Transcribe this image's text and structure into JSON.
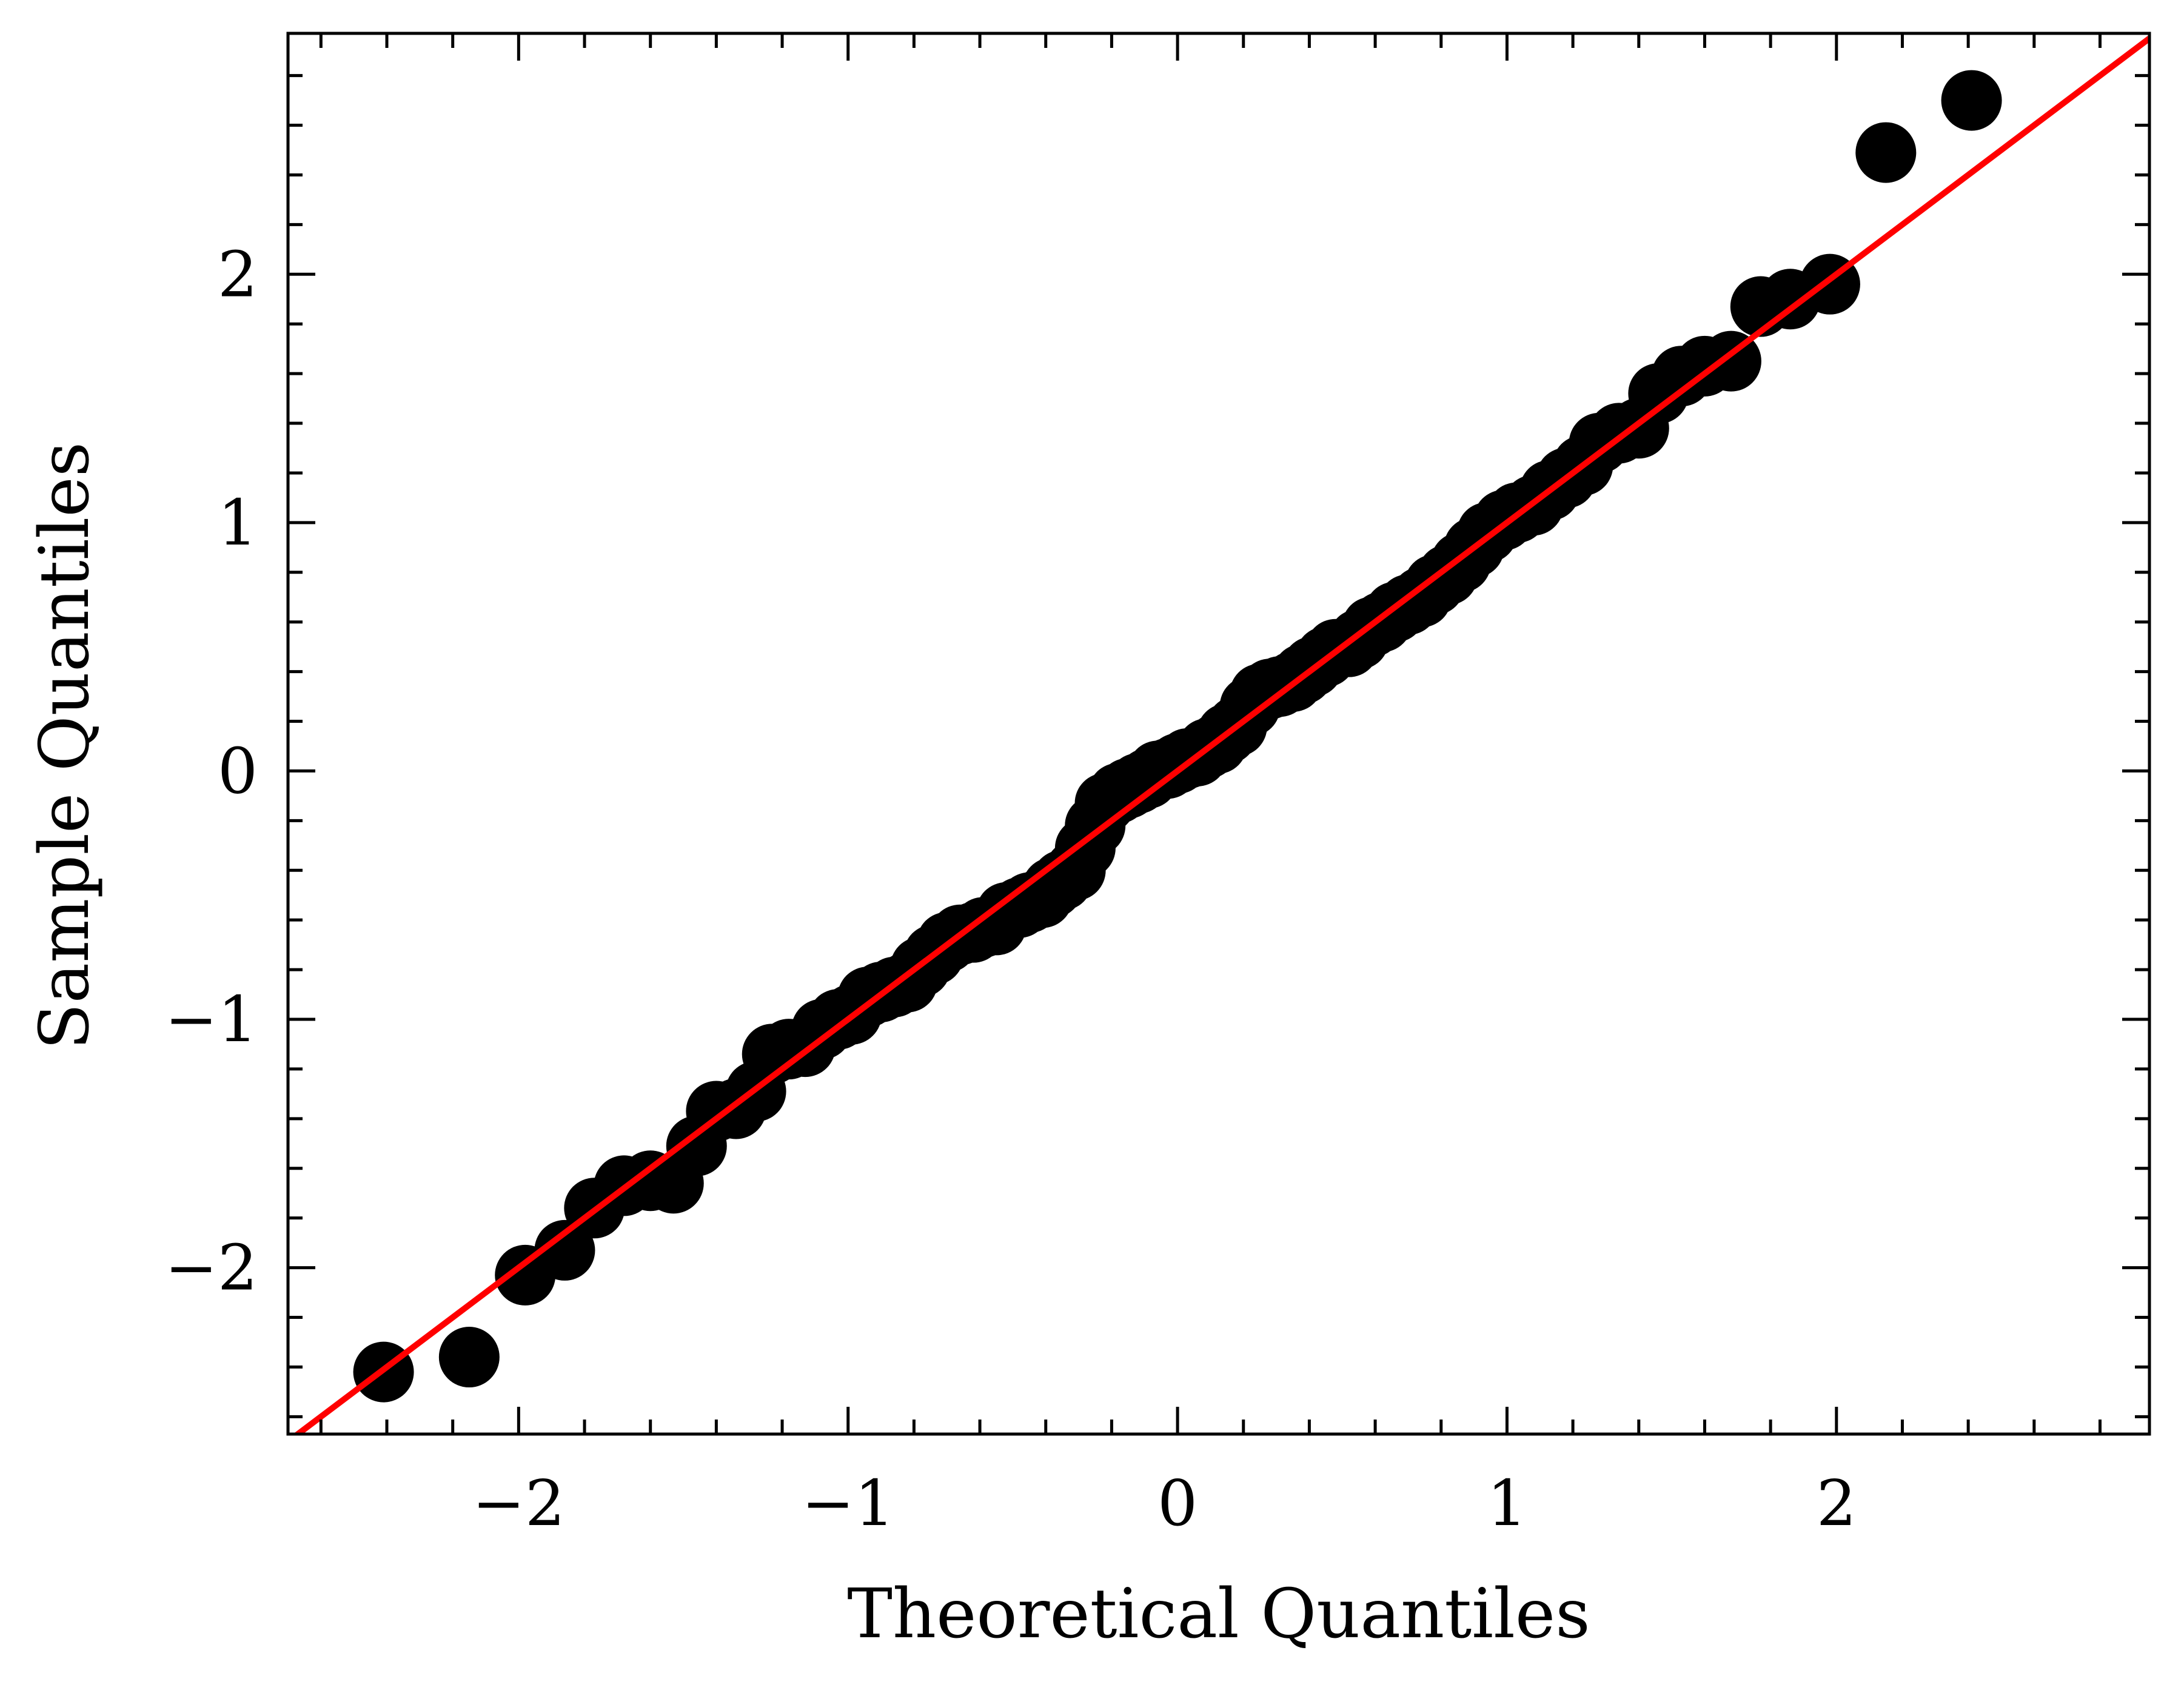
{
  "chart_data": {
    "type": "scatter",
    "title": "",
    "xlabel": "Theoretical Quantiles",
    "ylabel": "Sample Quantiles",
    "xlim": [
      -2.7,
      2.95
    ],
    "ylim": [
      -2.67,
      2.97
    ],
    "xticks": [
      -2,
      -1,
      0,
      1,
      2
    ],
    "yticks": [
      -2,
      -1,
      0,
      1,
      2
    ],
    "xtick_labels": [
      "−2",
      "−1",
      "0",
      "1",
      "2"
    ],
    "ytick_labels": [
      "−2",
      "−1",
      "0",
      "1",
      "2"
    ],
    "grid": false,
    "point_color": "#000000",
    "line_color": "#ff0000",
    "reference_line": {
      "slope": 1.0,
      "intercept": 0.0
    },
    "points": [
      [
        -2.41,
        -2.42
      ],
      [
        -2.15,
        -2.36
      ],
      [
        -1.98,
        -2.03
      ],
      [
        -1.86,
        -1.93
      ],
      [
        -1.77,
        -1.76
      ],
      [
        -1.68,
        -1.67
      ],
      [
        -1.6,
        -1.65
      ],
      [
        -1.53,
        -1.66
      ],
      [
        -1.46,
        -1.51
      ],
      [
        -1.4,
        -1.37
      ],
      [
        -1.34,
        -1.36
      ],
      [
        -1.28,
        -1.29
      ],
      [
        -1.23,
        -1.14
      ],
      [
        -1.18,
        -1.12
      ],
      [
        -1.13,
        -1.11
      ],
      [
        -1.08,
        -1.04
      ],
      [
        -1.03,
        -1.0
      ],
      [
        -0.99,
        -0.98
      ],
      [
        -0.94,
        -0.91
      ],
      [
        -0.9,
        -0.89
      ],
      [
        -0.86,
        -0.87
      ],
      [
        -0.82,
        -0.85
      ],
      [
        -0.78,
        -0.79
      ],
      [
        -0.74,
        -0.74
      ],
      [
        -0.7,
        -0.69
      ],
      [
        -0.66,
        -0.66
      ],
      [
        -0.62,
        -0.65
      ],
      [
        -0.59,
        -0.63
      ],
      [
        -0.55,
        -0.62
      ],
      [
        -0.52,
        -0.57
      ],
      [
        -0.48,
        -0.55
      ],
      [
        -0.45,
        -0.53
      ],
      [
        -0.41,
        -0.51
      ],
      [
        -0.38,
        -0.47
      ],
      [
        -0.35,
        -0.44
      ],
      [
        -0.31,
        -0.4
      ],
      [
        -0.28,
        -0.31
      ],
      [
        -0.25,
        -0.22
      ],
      [
        -0.22,
        -0.13
      ],
      [
        -0.18,
        -0.09
      ],
      [
        -0.15,
        -0.07
      ],
      [
        -0.12,
        -0.05
      ],
      [
        -0.09,
        -0.03
      ],
      [
        -0.06,
        0.0
      ],
      [
        -0.03,
        0.01
      ],
      [
        0.0,
        0.03
      ],
      [
        0.03,
        0.05
      ],
      [
        0.06,
        0.06
      ],
      [
        0.09,
        0.09
      ],
      [
        0.12,
        0.11
      ],
      [
        0.15,
        0.15
      ],
      [
        0.18,
        0.18
      ],
      [
        0.22,
        0.26
      ],
      [
        0.25,
        0.31
      ],
      [
        0.28,
        0.33
      ],
      [
        0.31,
        0.34
      ],
      [
        0.35,
        0.36
      ],
      [
        0.38,
        0.39
      ],
      [
        0.41,
        0.42
      ],
      [
        0.45,
        0.46
      ],
      [
        0.48,
        0.49
      ],
      [
        0.52,
        0.5
      ],
      [
        0.55,
        0.53
      ],
      [
        0.59,
        0.58
      ],
      [
        0.62,
        0.6
      ],
      [
        0.66,
        0.64
      ],
      [
        0.7,
        0.67
      ],
      [
        0.74,
        0.7
      ],
      [
        0.78,
        0.75
      ],
      [
        0.82,
        0.79
      ],
      [
        0.86,
        0.84
      ],
      [
        0.9,
        0.9
      ],
      [
        0.94,
        0.96
      ],
      [
        0.99,
        1.01
      ],
      [
        1.03,
        1.04
      ],
      [
        1.08,
        1.07
      ],
      [
        1.13,
        1.13
      ],
      [
        1.18,
        1.18
      ],
      [
        1.23,
        1.23
      ],
      [
        1.28,
        1.32
      ],
      [
        1.34,
        1.36
      ],
      [
        1.4,
        1.38
      ],
      [
        1.46,
        1.52
      ],
      [
        1.53,
        1.59
      ],
      [
        1.6,
        1.63
      ],
      [
        1.68,
        1.65
      ],
      [
        1.77,
        1.87
      ],
      [
        1.86,
        1.9
      ],
      [
        1.98,
        1.96
      ],
      [
        2.15,
        2.49
      ],
      [
        2.41,
        2.7
      ]
    ]
  }
}
